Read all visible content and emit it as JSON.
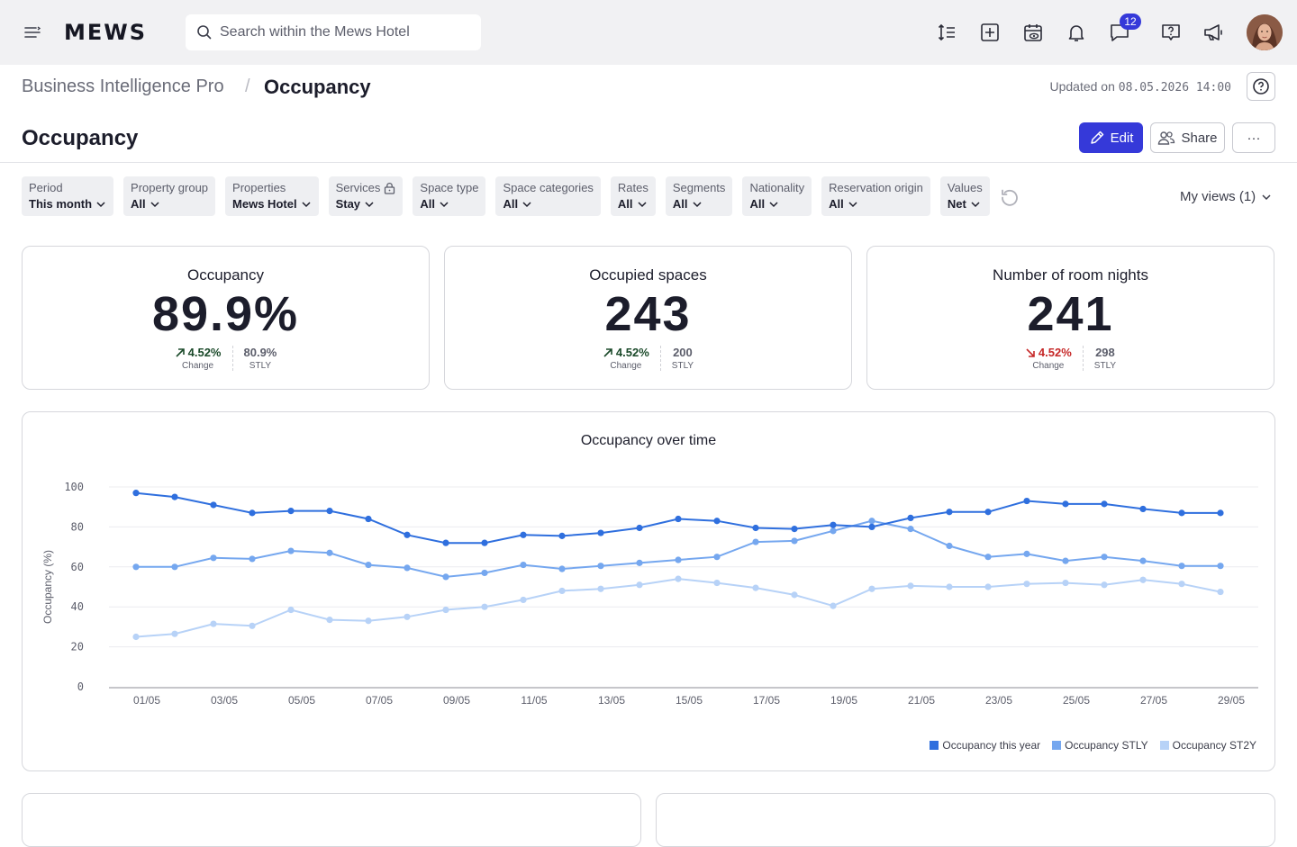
{
  "topbar": {
    "logo": "MEWS",
    "search_placeholder": "Search within the Mews Hotel",
    "icons": [
      "menu-icon",
      "line-height-icon",
      "add-square-icon",
      "calendar-view-icon",
      "bell-icon",
      "chat-icon",
      "help-chat-icon",
      "megaphone-icon"
    ],
    "notification_count": "12"
  },
  "breadcrumb": {
    "parent": "Business Intelligence Pro",
    "separator": "/",
    "current": "Occupancy"
  },
  "updated": {
    "label": "Updated on",
    "timestamp": "08.05.2026 14:00"
  },
  "page": {
    "title": "Occupancy",
    "edit_label": "Edit",
    "share_label": "Share",
    "more_label": "···"
  },
  "filters": [
    {
      "label": "Period",
      "value": "This month"
    },
    {
      "label": "Property group",
      "value": "All"
    },
    {
      "label": "Properties",
      "value": "Mews Hotel"
    },
    {
      "label": "Services",
      "value": "Stay",
      "locked": true
    },
    {
      "label": "Space type",
      "value": "All"
    },
    {
      "label": "Space categories",
      "value": "All"
    },
    {
      "label": "Rates",
      "value": "All"
    },
    {
      "label": "Segments",
      "value": "All"
    },
    {
      "label": "Nationality",
      "value": "All"
    },
    {
      "label": "Reservation origin",
      "value": "All"
    },
    {
      "label": "Values",
      "value": "Net"
    }
  ],
  "my_views": "My views (1)",
  "kpis": [
    {
      "title": "Occupancy",
      "value": "89.9%",
      "change": "4.52%",
      "direction": "up",
      "change_label": "Change",
      "stly": "80.9%",
      "stly_label": "STLY"
    },
    {
      "title": "Occupied spaces",
      "value": "243",
      "change": "4.52%",
      "direction": "up",
      "change_label": "Change",
      "stly": "200",
      "stly_label": "STLY"
    },
    {
      "title": "Number of room nights",
      "value": "241",
      "change": "4.52%",
      "direction": "down",
      "change_label": "Change",
      "stly": "298",
      "stly_label": "STLY"
    }
  ],
  "colors": {
    "accent": "#3539d9",
    "series_this_year": "#2f6fde",
    "series_stly": "#75a7ef",
    "series_st2y": "#b7d2f7",
    "up": "#1b4a2a",
    "down": "#c62828"
  },
  "chart_data": {
    "type": "line",
    "title": "Occupancy over time",
    "ylabel": "Occupancy (%)",
    "xlabel": "",
    "ylim": [
      0,
      100
    ],
    "yticks": [
      0,
      20,
      40,
      60,
      80,
      100
    ],
    "grid": true,
    "legend_position": "bottom-right",
    "x": [
      "01/05",
      "02/05",
      "03/05",
      "04/05",
      "05/05",
      "06/05",
      "07/05",
      "08/05",
      "09/05",
      "10/05",
      "11/05",
      "12/05",
      "13/05",
      "14/05",
      "15/05",
      "16/05",
      "17/05",
      "18/05",
      "19/05",
      "20/05",
      "21/05",
      "22/05",
      "23/05",
      "24/05",
      "25/05",
      "26/05",
      "27/05",
      "28/05",
      "29/05"
    ],
    "x_tick_labels": [
      "01/05",
      "03/05",
      "05/05",
      "07/05",
      "09/05",
      "11/05",
      "13/05",
      "15/05",
      "17/05",
      "19/05",
      "21/05",
      "23/05",
      "25/05",
      "27/05",
      "29/05"
    ],
    "series": [
      {
        "name": "Occupancy this year",
        "color": "#2f6fde",
        "values": [
          97,
          95,
          91,
          87,
          88,
          88,
          84,
          76,
          72,
          72,
          76,
          75.5,
          77,
          79.5,
          84,
          83,
          79.5,
          79,
          81,
          80,
          84.5,
          87.5,
          87.5,
          93,
          91.5,
          91.5,
          89,
          87,
          87
        ]
      },
      {
        "name": "Occupancy STLY",
        "color": "#75a7ef",
        "values": [
          60,
          60,
          64.5,
          64,
          68,
          67,
          61,
          59.5,
          55,
          57,
          61,
          59,
          60.5,
          62,
          63.5,
          65,
          72.5,
          73,
          78,
          83,
          79,
          70.5,
          65,
          66.5,
          63,
          65,
          63,
          60.5,
          60.5
        ]
      },
      {
        "name": "Occupancy ST2Y",
        "color": "#b7d2f7",
        "values": [
          25,
          26.5,
          31.5,
          30.5,
          38.5,
          33.5,
          33,
          35,
          38.5,
          40,
          43.5,
          48,
          49,
          51,
          54,
          52,
          49.5,
          46,
          40.5,
          49,
          50.5,
          50,
          50,
          51.5,
          52,
          51,
          53.5,
          51.5,
          47.5
        ]
      }
    ]
  }
}
